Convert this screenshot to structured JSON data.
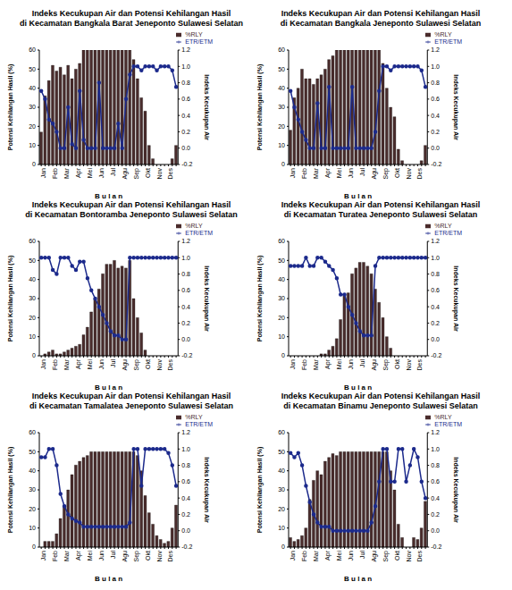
{
  "chart_data": [
    {
      "type": "bar",
      "title": "Indeks Kecukupan Air dan Potensi Kehilangan Hasil",
      "subtitle": "di Kecamatan Bangkala Barat Jeneponto Sulawesi Selatan",
      "x_label": "B u l a n",
      "y_label": "Potensi Kehilangan Hasil (%)",
      "y2_label": "Indeks Kecukupan Air",
      "categories": [
        "Jan",
        null,
        null,
        "Feb",
        null,
        null,
        "Mar",
        null,
        null,
        "Apr",
        null,
        null,
        "Mei",
        null,
        null,
        "Jun",
        null,
        null,
        "Jul",
        null,
        null,
        "Agu",
        null,
        null,
        "Sep",
        null,
        null,
        "Okt",
        null,
        null,
        "Nov",
        null,
        null,
        "Des",
        null,
        null
      ],
      "ylim": [
        0,
        60
      ],
      "yticks": [
        0,
        10,
        20,
        30,
        40,
        50,
        60
      ],
      "y2lim": [
        -0.2,
        1.2
      ],
      "y2ticks": [
        -0.2,
        {
          "value": 0,
          "label": "0.0"
        },
        0.2,
        0.4,
        0.6,
        0.8,
        {
          "value": 1,
          "label": "1.0"
        },
        1.2
      ],
      "legend": "upper right",
      "series": [
        {
          "name": "%RLY",
          "type": "bar",
          "color": "#4a2c2c",
          "values": [
            17,
            36,
            44,
            52,
            49,
            51,
            47,
            52,
            45,
            50,
            53,
            60,
            60,
            60,
            60,
            60,
            60,
            60,
            60,
            60,
            60,
            60,
            60,
            60,
            55,
            45,
            35,
            28,
            10,
            3,
            0,
            0,
            0,
            0,
            3,
            10
          ]
        },
        {
          "name": "ETR/ETM",
          "type": "line",
          "axis": "y2",
          "marker": "circle",
          "color": "#1c2a8c",
          "values": [
            0.7,
            0.6,
            0.35,
            0.3,
            0.2,
            0.0,
            0.0,
            0.5,
            0.05,
            0.0,
            0.7,
            0.1,
            0.0,
            0.0,
            0.0,
            0.8,
            0.0,
            0.0,
            0.0,
            0.0,
            0.3,
            0.0,
            0.6,
            0.9,
            1.0,
            1.0,
            0.95,
            1.0,
            1.0,
            1.0,
            0.95,
            1.0,
            1.0,
            1.0,
            0.95,
            0.75
          ]
        }
      ]
    },
    {
      "type": "bar",
      "title": "Indeks Kecukupan Air dan Potensi Kehilangan Hasil",
      "subtitle": "di Kecamatan Bangkala Jeneponto Sulawesi Selatan",
      "x_label": "B u l a n",
      "y_label": "Potensi Kehilangan Hasil (%)",
      "y2_label": "Indeks Kecukupan Air",
      "categories": [
        "Jan",
        null,
        null,
        "Feb",
        null,
        null,
        "Mar",
        null,
        null,
        "Apr",
        null,
        null,
        "Mei",
        null,
        null,
        "Jun",
        null,
        null,
        "Jul",
        null,
        null,
        "Agu",
        null,
        null,
        "Sep",
        null,
        null,
        "Okt",
        null,
        null,
        "Nov",
        null,
        null,
        "Des",
        null,
        null
      ],
      "ylim": [
        0,
        60
      ],
      "yticks": [
        0,
        10,
        20,
        30,
        40,
        50,
        60
      ],
      "y2lim": [
        -0.2,
        1.2
      ],
      "y2ticks": [
        -0.2,
        {
          "value": 0,
          "label": "0.0"
        },
        0.2,
        0.4,
        0.6,
        0.8,
        {
          "value": 1,
          "label": "1.0"
        },
        1.2
      ],
      "legend": "upper right",
      "series": [
        {
          "name": "%RLY",
          "type": "bar",
          "color": "#4a2c2c",
          "values": [
            18,
            35,
            40,
            50,
            45,
            45,
            42,
            45,
            47,
            50,
            55,
            57,
            60,
            60,
            60,
            60,
            60,
            60,
            60,
            60,
            60,
            60,
            60,
            60,
            53,
            40,
            30,
            25,
            8,
            2,
            0,
            0,
            0,
            0,
            2,
            10
          ]
        },
        {
          "name": "ETR/ETM",
          "type": "line",
          "axis": "y2",
          "marker": "circle",
          "color": "#1c2a8c",
          "values": [
            0.7,
            0.5,
            0.35,
            0.2,
            0.1,
            0.0,
            0.0,
            0.55,
            0.0,
            0.0,
            0.75,
            0.0,
            0.0,
            0.0,
            0.0,
            0.0,
            0.75,
            0.0,
            0.0,
            0.0,
            0.0,
            0.0,
            0.2,
            0.7,
            1.0,
            1.0,
            0.95,
            1.0,
            1.0,
            1.0,
            1.0,
            1.0,
            1.0,
            1.0,
            0.95,
            0.75
          ]
        }
      ]
    },
    {
      "type": "bar",
      "title": "Indeks Kecukupan Air dan Potensi Kehilangan Hasil",
      "subtitle": "di Kecamatan Bontoramba Jeneponto Sulawesi Selatan",
      "x_label": "B u l a n",
      "y_label": "Potensi Kehilangan Hasil (%)",
      "y2_label": "Indeks Kecukupan Air",
      "categories": [
        "Jan",
        null,
        null,
        "Feb",
        null,
        null,
        "Mar",
        null,
        null,
        "Apr",
        null,
        null,
        "Mei",
        null,
        null,
        "Jun",
        null,
        null,
        "Jul",
        null,
        null,
        "Agu",
        null,
        null,
        "Sep",
        null,
        null,
        "Okt",
        null,
        null,
        "Nov",
        null,
        null,
        "Des",
        null,
        null
      ],
      "ylim": [
        0,
        60
      ],
      "yticks": [
        0,
        10,
        20,
        30,
        40,
        50,
        60
      ],
      "y2lim": [
        -0.2,
        1.2
      ],
      "y2ticks": [
        -0.2,
        {
          "value": 0,
          "label": "0.0"
        },
        0.2,
        0.4,
        0.6,
        0.8,
        {
          "value": 1,
          "label": "1.0"
        },
        1.2
      ],
      "legend": "upper right",
      "series": [
        {
          "name": "%RLY",
          "type": "bar",
          "color": "#4a2c2c",
          "values": [
            0,
            1,
            2,
            3,
            1,
            1,
            2,
            3,
            4,
            5,
            6,
            11,
            15,
            23,
            30,
            35,
            43,
            48,
            48,
            50,
            46,
            47,
            46,
            50,
            30,
            20,
            12,
            3,
            0,
            0,
            0,
            0,
            0,
            0,
            0,
            0
          ]
        },
        {
          "name": "ETR/ETM",
          "type": "line",
          "axis": "y2",
          "marker": "circle",
          "color": "#1c2a8c",
          "values": [
            1.0,
            1.0,
            1.0,
            0.85,
            0.8,
            1.0,
            1.0,
            1.0,
            0.9,
            0.85,
            0.95,
            0.95,
            0.75,
            0.6,
            0.5,
            0.4,
            0.3,
            0.2,
            0.1,
            0.05,
            0.05,
            0.0,
            0.0,
            1.0,
            1.0,
            1.0,
            1.0,
            1.0,
            1.0,
            1.0,
            1.0,
            1.0,
            1.0,
            1.0,
            1.0,
            1.0
          ]
        }
      ]
    },
    {
      "type": "bar",
      "title": "Indeks Kecukupan Air dan Potensi Kehilangan Hasil",
      "subtitle": "di Kecamatan Turatea Jeneponto Sulawesi Selatan",
      "x_label": "B u l a n",
      "y_label": "Potensi Kehilangan Hasil (%)",
      "y2_label": "Indeks Kecukupan Air",
      "categories": [
        "Jan",
        null,
        null,
        "Feb",
        null,
        null,
        "Mar",
        null,
        null,
        "Apr",
        null,
        null,
        "Mei",
        null,
        null,
        "Jun",
        null,
        null,
        "Jul",
        null,
        null,
        "Agu",
        null,
        null,
        "Sep",
        null,
        null,
        "Okt",
        null,
        null,
        "Nov",
        null,
        null,
        "Des",
        null,
        null
      ],
      "ylim": [
        0,
        60
      ],
      "yticks": [
        0,
        10,
        20,
        30,
        40,
        50,
        60
      ],
      "y2lim": [
        -0.2,
        1.2
      ],
      "y2ticks": [
        -0.2,
        {
          "value": 0,
          "label": "0.0"
        },
        0.2,
        0.4,
        0.6,
        0.8,
        {
          "value": 1,
          "label": "1.0"
        },
        1.2
      ],
      "legend": "upper right",
      "series": [
        {
          "name": "%RLY",
          "type": "bar",
          "color": "#4a2c2c",
          "values": [
            0,
            0,
            0,
            0,
            0,
            0,
            0,
            0,
            1,
            1,
            3,
            5,
            9,
            19,
            32,
            33,
            43,
            46,
            49,
            49,
            47,
            43,
            35,
            28,
            20,
            10,
            4,
            0,
            0,
            0,
            0,
            0,
            0,
            0,
            0,
            0
          ]
        },
        {
          "name": "ETR/ETM",
          "type": "line",
          "axis": "y2",
          "marker": "circle",
          "color": "#1c2a8c",
          "values": [
            0.9,
            0.9,
            0.9,
            0.9,
            1.0,
            0.9,
            0.9,
            1.0,
            1.0,
            0.95,
            0.9,
            0.85,
            0.75,
            0.55,
            0.55,
            0.4,
            0.3,
            0.2,
            0.1,
            0.05,
            0.05,
            0.05,
            0.9,
            1.0,
            1.0,
            1.0,
            1.0,
            1.0,
            1.0,
            1.0,
            1.0,
            1.0,
            1.0,
            1.0,
            1.0,
            1.0
          ]
        }
      ]
    },
    {
      "type": "bar",
      "title": "Indeks Kecukupan Air dan Potensi Kehilangan Hasil",
      "subtitle": "di Kecamatan Tamalatea Jeneponto Sulawesi Selatan",
      "x_label": "B u l a n",
      "y_label": "Potensi Kehilangan Hasil (%)",
      "y2_label": "Indeks Kecukupan Air",
      "categories": [
        "Jan",
        null,
        null,
        "Feb",
        null,
        null,
        "Mar",
        null,
        null,
        "Apr",
        null,
        null,
        "Mei",
        null,
        null,
        "Jun",
        null,
        null,
        "Jul",
        null,
        null,
        "Agu",
        null,
        null,
        "Sep",
        null,
        null,
        "Okt",
        null,
        null,
        "Nov",
        null,
        null,
        "Des",
        null,
        null
      ],
      "ylim": [
        0,
        60
      ],
      "yticks": [
        0,
        10,
        20,
        30,
        40,
        50,
        60
      ],
      "y2lim": [
        -0.2,
        1.2
      ],
      "y2ticks": [
        -0.2,
        {
          "value": 0,
          "label": "0.0"
        },
        0.2,
        0.4,
        0.6,
        0.8,
        {
          "value": 1,
          "label": "1.0"
        },
        1.2
      ],
      "legend": "upper right",
      "series": [
        {
          "name": "%RLY",
          "type": "bar",
          "color": "#4a2c2c",
          "values": [
            0,
            3,
            3,
            3,
            7,
            15,
            22,
            30,
            38,
            43,
            45,
            47,
            48,
            50,
            50,
            50,
            50,
            50,
            50,
            50,
            50,
            50,
            50,
            50,
            50,
            48,
            40,
            27,
            18,
            12,
            6,
            4,
            2,
            3,
            10,
            22
          ]
        },
        {
          "name": "ETR/ETM",
          "type": "line",
          "axis": "y2",
          "marker": "circle",
          "color": "#1c2a8c",
          "values": [
            0.9,
            0.9,
            1.0,
            1.0,
            0.8,
            0.45,
            0.3,
            0.2,
            0.15,
            0.12,
            0.1,
            0.05,
            0.05,
            0.05,
            0.05,
            0.05,
            0.05,
            0.05,
            0.05,
            0.05,
            0.05,
            0.05,
            0.05,
            0.1,
            1.0,
            1.0,
            0.55,
            1.0,
            1.0,
            1.0,
            1.0,
            1.0,
            1.0,
            0.95,
            0.8,
            0.55
          ]
        }
      ]
    },
    {
      "type": "bar",
      "title": "Indeks Kecukupan Air dan Potensi Kehilangan Hasil",
      "subtitle": "di Kecamatan Binamu Jeneponto Sulawesi Selatan",
      "x_label": "B u l a n",
      "y_label": "Potensi Kehilangan Hasil (%)",
      "y2_label": "Indeks Kecukupan Air",
      "categories": [
        "Jan",
        null,
        null,
        "Feb",
        null,
        null,
        "Mar",
        null,
        null,
        "Apr",
        null,
        null,
        "Mei",
        null,
        null,
        "Jun",
        null,
        null,
        "Jul",
        null,
        null,
        "Agu",
        null,
        null,
        "Sep",
        null,
        null,
        "Okt",
        null,
        null,
        "Nov",
        null,
        null,
        "Des",
        null,
        null
      ],
      "ylim": [
        0,
        60
      ],
      "yticks": [
        0,
        10,
        20,
        30,
        40,
        50,
        60
      ],
      "y2lim": [
        -0.2,
        1.2
      ],
      "y2ticks": [
        -0.2,
        {
          "value": 0,
          "label": "0.0"
        },
        0.2,
        0.4,
        0.6,
        0.8,
        {
          "value": 1,
          "label": "1.0"
        },
        1.2
      ],
      "legend": "upper right",
      "series": [
        {
          "name": "%RLY",
          "type": "bar",
          "color": "#4a2c2c",
          "values": [
            5,
            3,
            4,
            6,
            10,
            25,
            35,
            40,
            38,
            45,
            47,
            49,
            48,
            50,
            50,
            50,
            50,
            50,
            50,
            50,
            50,
            50,
            50,
            50,
            50,
            50,
            40,
            30,
            12,
            5,
            0,
            0,
            5,
            4,
            10,
            24
          ]
        },
        {
          "name": "ETR/ETM",
          "type": "line",
          "axis": "y2",
          "marker": "circle",
          "color": "#1c2a8c",
          "values": [
            0.95,
            0.9,
            0.95,
            0.8,
            0.55,
            0.35,
            0.2,
            0.1,
            0.05,
            0.05,
            0.05,
            0.0,
            0.0,
            0.0,
            0.0,
            0.0,
            0.0,
            0.0,
            0.0,
            0.0,
            0.0,
            0.1,
            0.3,
            0.6,
            1.0,
            1.0,
            0.6,
            0.6,
            1.0,
            1.0,
            0.6,
            0.8,
            1.0,
            0.9,
            0.6,
            0.4
          ]
        }
      ]
    }
  ]
}
